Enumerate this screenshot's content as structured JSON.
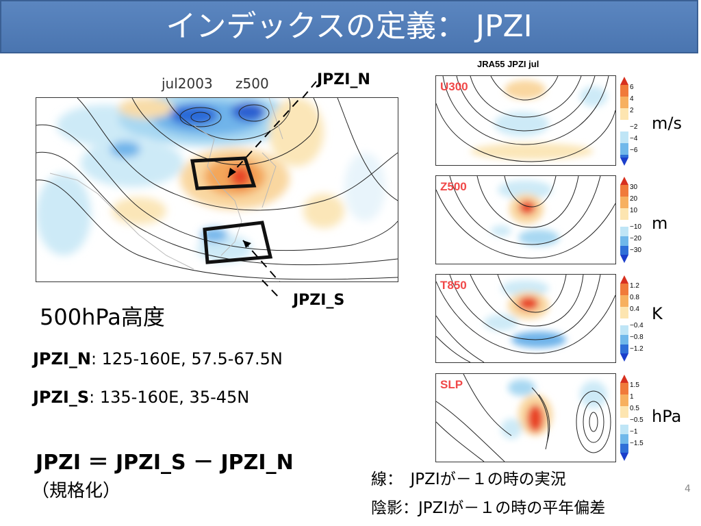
{
  "slide": {
    "title": "インデックスの定義： JPZI",
    "page_number": "4"
  },
  "main_map": {
    "header_left": "jul2003",
    "header_right": "z500",
    "label_north": "JPZI_N",
    "label_south": "JPZI_S",
    "caption": "500hPa高度"
  },
  "definitions": {
    "n_name": "JPZI_N",
    "n_range": ": 125-160E, 57.5-67.5N",
    "s_name": "JPZI_S",
    "s_range": ":  135-160E, 35-45N",
    "formula": "JPZI ＝ JPZI_S － JPZI_N",
    "note": "（規格化）"
  },
  "composite": {
    "title": "JRA55 JPZI jul",
    "panels": [
      {
        "tag": "U300",
        "unit": "m/s",
        "ticks": [
          "6",
          "4",
          "2",
          "−2",
          "−4",
          "−6"
        ]
      },
      {
        "tag": "Z500",
        "unit": "m",
        "ticks": [
          "30",
          "20",
          "10",
          "−10",
          "−20",
          "−30"
        ]
      },
      {
        "tag": "T850",
        "unit": "K",
        "ticks": [
          "1.2",
          "0.8",
          "0.4",
          "−0.4",
          "−0.8",
          "−1.2"
        ]
      },
      {
        "tag": "SLP",
        "unit": "hPa",
        "ticks": [
          "1.5",
          "1",
          "0.5",
          "−0.5",
          "−1",
          "−1.5"
        ]
      }
    ]
  },
  "legend": {
    "line1": "線：　JPZIが－１の時の実況",
    "line2": "陰影：JPZIが－１の時の平年偏差"
  }
}
